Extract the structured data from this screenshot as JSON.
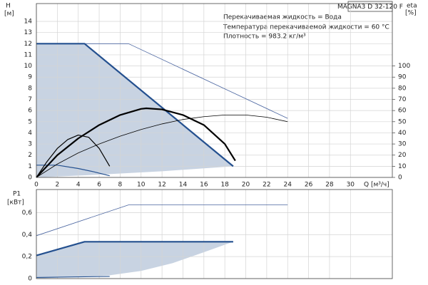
{
  "chart_data": [
    {
      "type": "line",
      "title": "MAGNA3 D 32-120 F",
      "notes": [
        "Перекачиваемая жидкость = Вода",
        "Температура перекачиваемой жидкости = 60 °C",
        "Плотность = 983.2 кг/м³"
      ],
      "ylabel": "H",
      "yunit": "[м]",
      "y2label": "eta",
      "y2unit": "[%]",
      "xlabel": "Q [м³/ч]",
      "xlim": [
        0,
        34
      ],
      "ylim": [
        0,
        15.6
      ],
      "y2lim": [
        0,
        156
      ],
      "xticks": [
        0,
        2,
        4,
        6,
        8,
        10,
        12,
        14,
        16,
        18,
        20,
        22,
        24,
        26,
        28,
        30
      ],
      "yticks": [
        0,
        1,
        2,
        3,
        4,
        5,
        6,
        7,
        8,
        9,
        10,
        11,
        12,
        13,
        14
      ],
      "y2ticks": [
        0,
        10,
        20,
        30,
        40,
        50,
        60,
        70,
        80,
        90,
        100
      ],
      "grid": true,
      "xtick_labels": true,
      "series": [
        {
          "style": "area",
          "color": "#c8d3e2",
          "x": [
            0,
            4.6,
            18.8,
            12,
            6,
            0
          ],
          "values": [
            12,
            12,
            1.0,
            0.55,
            0.25,
            0
          ]
        },
        {
          "style": "line",
          "color": "#4a65a0",
          "width": 0.8,
          "x": [
            0,
            8.8,
            24
          ],
          "values": [
            12,
            12,
            5.3
          ]
        },
        {
          "style": "line",
          "color": "#24508f",
          "width": 2.2,
          "x": [
            0,
            4.6,
            18.8
          ],
          "values": [
            12,
            12,
            1.0
          ]
        },
        {
          "style": "line",
          "color": "#24508f",
          "width": 1.2,
          "x": [
            0,
            2,
            4,
            5.5,
            7
          ],
          "values": [
            1.1,
            1.1,
            0.8,
            0.5,
            0.15
          ]
        },
        {
          "style": "line",
          "color": "#000000",
          "width": 2.2,
          "axis": "y2",
          "x": [
            0,
            2,
            4,
            6,
            8,
            10,
            10.5,
            12,
            14,
            16,
            18,
            19
          ],
          "values": [
            0,
            20,
            35,
            47,
            56,
            61.5,
            62,
            61,
            56,
            47,
            30,
            15
          ]
        },
        {
          "style": "line",
          "color": "#000000",
          "width": 0.8,
          "axis": "y2",
          "x": [
            0,
            2,
            4,
            6,
            8,
            10,
            12,
            14,
            16,
            18,
            20,
            22,
            24
          ],
          "values": [
            0,
            12,
            22,
            30,
            37,
            43,
            48,
            52,
            54.5,
            56,
            56,
            54,
            50
          ]
        },
        {
          "style": "line",
          "color": "#000000",
          "width": 1.2,
          "axis": "y2",
          "x": [
            0,
            1,
            2,
            3,
            4,
            5,
            6,
            7
          ],
          "values": [
            0,
            14,
            26,
            34,
            38,
            36,
            26,
            10
          ]
        }
      ]
    },
    {
      "type": "line",
      "ylabel": "P1",
      "yunit": "[кВт]",
      "xlim": [
        0,
        34
      ],
      "ylim": [
        0,
        0.81
      ],
      "xticks": [
        0,
        2,
        4,
        6,
        8,
        10,
        12,
        14,
        16,
        18,
        20,
        22,
        24,
        26,
        28,
        30
      ],
      "yticks": [
        0,
        {
          "value": 0.2,
          "label": "0,2"
        },
        {
          "value": 0.4,
          "label": "0,4"
        },
        {
          "value": 0.6,
          "label": "0,6"
        }
      ],
      "grid": true,
      "xtick_labels": false,
      "series": [
        {
          "style": "area",
          "color": "#c8d3e2",
          "x": [
            0,
            4.6,
            18.8,
            16,
            13,
            10,
            7,
            0
          ],
          "values": [
            0.21,
            0.335,
            0.335,
            0.24,
            0.14,
            0.07,
            0.03,
            0
          ]
        },
        {
          "style": "line",
          "color": "#4a65a0",
          "width": 0.8,
          "x": [
            0,
            8.8,
            24
          ],
          "values": [
            0.39,
            0.67,
            0.67
          ]
        },
        {
          "style": "line",
          "color": "#24508f",
          "width": 2.2,
          "x": [
            0,
            4.6,
            18.8
          ],
          "values": [
            0.21,
            0.335,
            0.335
          ]
        },
        {
          "style": "line",
          "color": "#24508f",
          "width": 1.2,
          "x": [
            0,
            7
          ],
          "values": [
            0.01,
            0.02
          ]
        }
      ]
    }
  ]
}
